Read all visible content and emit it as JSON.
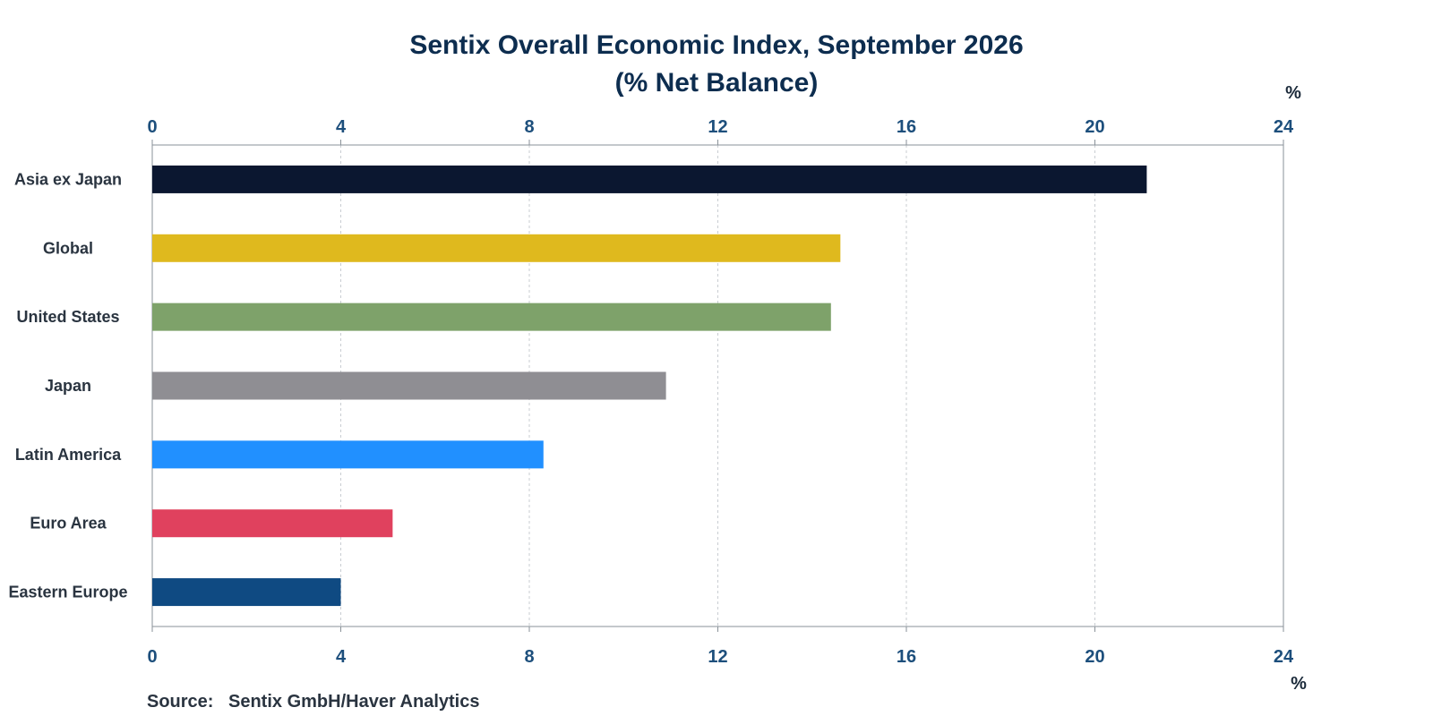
{
  "chart_data": {
    "type": "bar",
    "orientation": "horizontal",
    "title": "Sentix Overall Economic Index, September 2026",
    "subtitle": "(% Net Balance)",
    "unit_label": "%",
    "categories": [
      "Asia ex Japan",
      "Global",
      "United States",
      "Japan",
      "Latin America",
      "Euro Area",
      "Eastern Europe"
    ],
    "values": [
      21.1,
      14.6,
      14.4,
      10.9,
      8.3,
      5.1,
      4.0
    ],
    "colors": [
      "#0b1730",
      "#dfb91e",
      "#7ea26a",
      "#8f8e93",
      "#2190ff",
      "#e0415e",
      "#0f4a82"
    ],
    "xlim": [
      0,
      24
    ],
    "ticks": [
      0,
      4,
      8,
      12,
      16,
      20,
      24
    ],
    "tick_labels": [
      "0",
      "4",
      "8",
      "12",
      "16",
      "20",
      "24"
    ],
    "grid": true,
    "source_label": "Source:",
    "source_text": "Sentix GmbH/Haver Analytics"
  }
}
